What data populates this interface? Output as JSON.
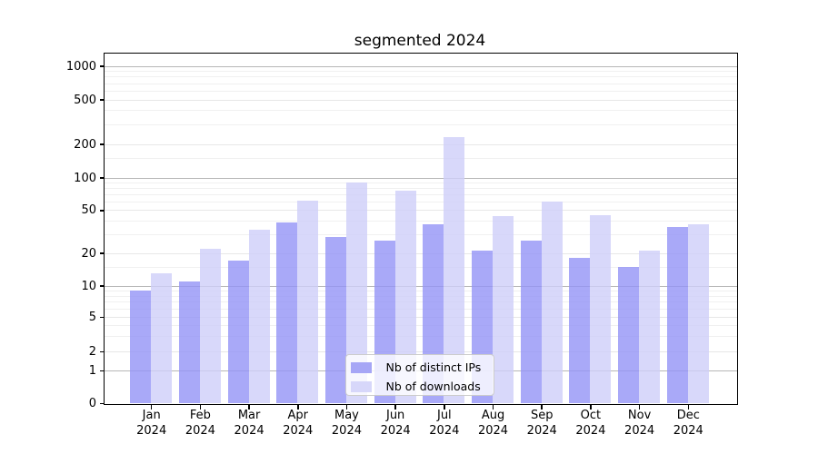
{
  "title": "segmented 2024",
  "chart_data": {
    "type": "bar",
    "title": "segmented 2024",
    "months": [
      "Jan",
      "Feb",
      "Mar",
      "Apr",
      "May",
      "Jun",
      "Jul",
      "Aug",
      "Sep",
      "Oct",
      "Nov",
      "Dec"
    ],
    "year": "2024",
    "categories": [
      "Jan 2024",
      "Feb 2024",
      "Mar 2024",
      "Apr 2024",
      "May 2024",
      "Jun 2024",
      "Jul 2024",
      "Aug 2024",
      "Sep 2024",
      "Oct 2024",
      "Nov 2024",
      "Dec 2024"
    ],
    "series": [
      {
        "name": "Nb of distinct IPs",
        "values": [
          9,
          11,
          17,
          38,
          28,
          26,
          37,
          21,
          26,
          18,
          15,
          35
        ],
        "bar_color": "rgba(148,148,246,0.8)",
        "legend_color": "#a6a6f6"
      },
      {
        "name": "Nb of downloads",
        "values": [
          13,
          22,
          33,
          61,
          90,
          76,
          230,
          44,
          60,
          45,
          21,
          37
        ],
        "bar_color": "rgba(206,206,249,0.8)",
        "legend_color": "#d7d7fa"
      }
    ],
    "y_ticks": [
      0,
      1,
      2,
      5,
      10,
      20,
      50,
      100,
      200,
      500,
      1000
    ],
    "y_major_ticks": [
      1,
      10,
      100,
      1000
    ],
    "yscale": "symlog-like",
    "ylim": [
      0,
      1300
    ],
    "grid": "on",
    "legend_position": "lower center"
  },
  "colors": {
    "background": "#ffffff",
    "grid_major": "#b7b7b7",
    "grid_minor": "#f0f0f0",
    "spine": "#000000",
    "text": "#000000",
    "legend_border": "#cccccc"
  }
}
